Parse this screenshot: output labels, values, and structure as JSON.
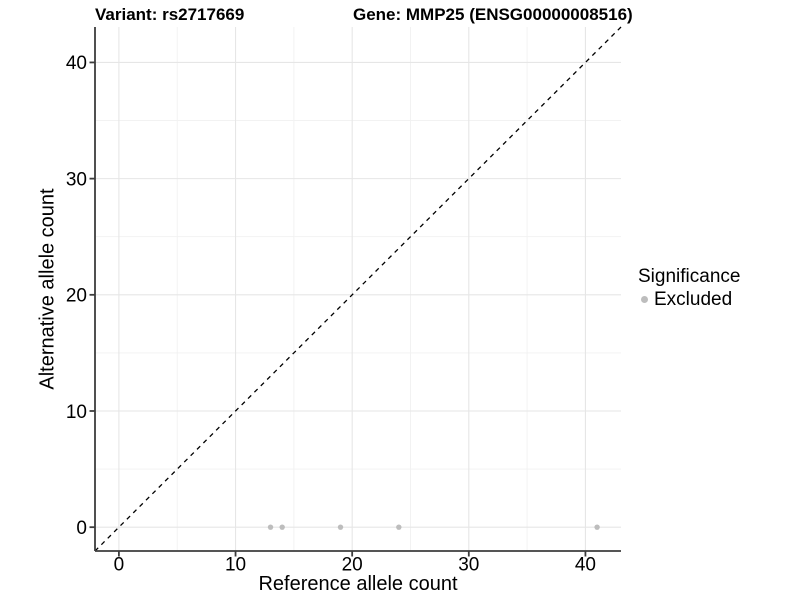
{
  "chart_data": {
    "type": "scatter",
    "titles": {
      "left": "Variant: rs2717669",
      "right": "Gene: MMP25 (ENSG00000008516)"
    },
    "xlabel": "Reference allele count",
    "ylabel": "Alternative allele count",
    "xlim": [
      -2.05,
      43.05
    ],
    "ylim": [
      -2.05,
      43.05
    ],
    "xticks": [
      0,
      10,
      20,
      30,
      40
    ],
    "yticks": [
      0,
      10,
      20,
      30,
      40
    ],
    "x_minor_ticks": [
      5,
      15,
      25,
      35
    ],
    "y_minor_ticks": [
      5,
      15,
      25,
      35
    ],
    "grid": "major+minor",
    "legend_position": "right",
    "series": [
      {
        "name": "Excluded",
        "marker": "circle",
        "color": "#bdbdbd",
        "points": [
          {
            "x": 13,
            "y": 0
          },
          {
            "x": 14,
            "y": 0
          },
          {
            "x": 19,
            "y": 0
          },
          {
            "x": 24,
            "y": 0
          },
          {
            "x": 41,
            "y": 0
          }
        ]
      }
    ],
    "reference_line": {
      "kind": "identity",
      "slope": 1,
      "intercept": 0,
      "style": "dashed",
      "color": "#000000"
    },
    "legend": {
      "title": "Significance",
      "items": [
        {
          "label": "Excluded",
          "color": "#bdbdbd"
        }
      ]
    }
  },
  "style": {
    "background": "#ffffff",
    "grid_major_color": "#e6e6e6",
    "grid_minor_color": "#f1f1f1",
    "axis_line_color": "#3d3d3d",
    "tick_label_color": "#000000",
    "point_color": "#bdbdbd"
  }
}
